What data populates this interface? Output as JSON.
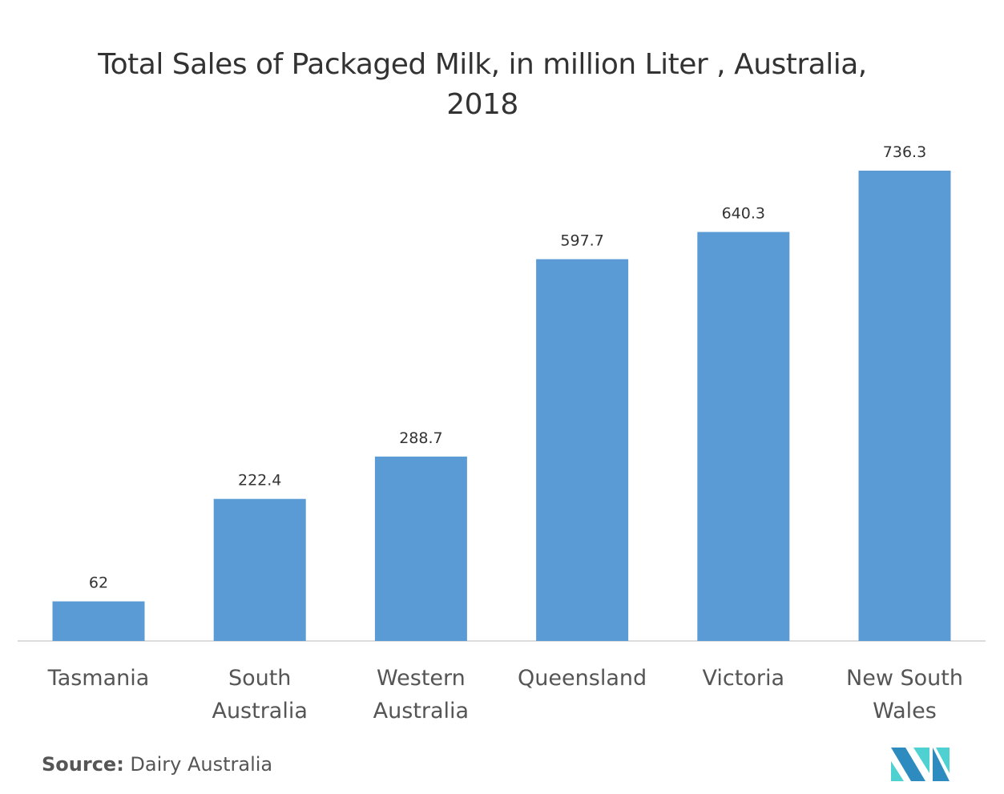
{
  "chart_data": {
    "type": "bar",
    "title": "Total Sales of Packaged Milk, in million Liter , Australia, 2018",
    "categories": [
      [
        "Tasmania"
      ],
      [
        "South",
        "Australia"
      ],
      [
        "Western",
        "Australia"
      ],
      [
        "Queensland"
      ],
      [
        "Victoria"
      ],
      [
        "New South",
        "Wales"
      ]
    ],
    "values": [
      62,
      222.4,
      288.7,
      597.7,
      640.3,
      736.3
    ],
    "value_labels": [
      "62",
      "222.4",
      "288.7",
      "597.7",
      "640.3",
      "736.3"
    ],
    "xlabel": "",
    "ylabel": "",
    "ylim": [
      0,
      736.3
    ],
    "grid": false,
    "bar_color": "#5b9bd5"
  },
  "source": {
    "label": "Source:",
    "text": " Dairy Australia"
  },
  "logo": {
    "text": "MN",
    "colors": [
      "#2e8bc0",
      "#4fd1d1"
    ]
  }
}
